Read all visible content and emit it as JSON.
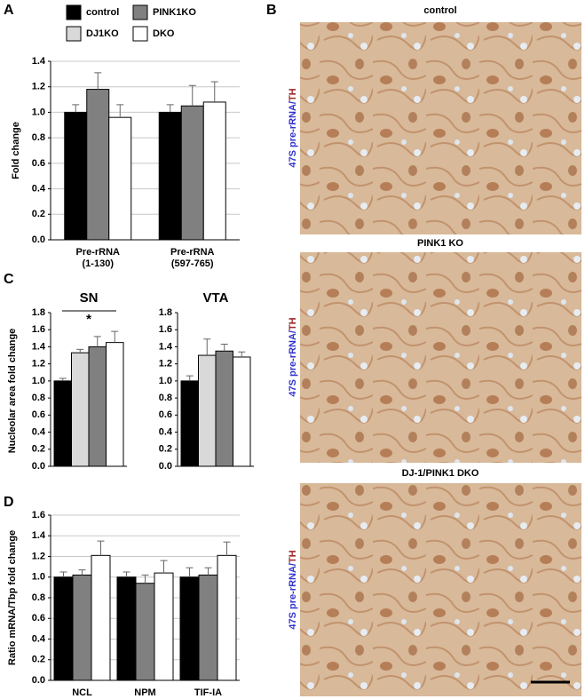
{
  "chart_data": [
    {
      "type": "bar",
      "y_label": "Fold change",
      "categories": [
        [
          "Pre-rRNA",
          "(1-130)"
        ],
        [
          "Pre-rRNA",
          "(597-765)"
        ]
      ],
      "series": [
        {
          "name": "control",
          "color": "#000000",
          "values": [
            1.0,
            1.0
          ],
          "errors": [
            0.06,
            0.06
          ]
        },
        {
          "name": "PINK1KO",
          "color": "#808080",
          "values": [
            1.18,
            1.05
          ],
          "errors": [
            0.13,
            0.16
          ]
        },
        {
          "name": "DKO",
          "color": "#ffffff",
          "values": [
            0.96,
            1.08
          ],
          "errors": [
            0.1,
            0.16
          ]
        }
      ],
      "ylim": [
        0,
        1.4
      ],
      "yticks": [
        {
          "value": 0,
          "label": "0.0"
        },
        {
          "value": 0.2,
          "label": "0.2"
        },
        {
          "value": 0.4,
          "label": "0.4"
        },
        {
          "value": 0.6,
          "label": "0.6"
        },
        {
          "value": 0.8,
          "label": "0.8"
        },
        {
          "value": 1,
          "label": "1.0"
        },
        {
          "value": 1.2,
          "label": "1.2"
        },
        {
          "value": 1.4,
          "label": "1.4"
        }
      ],
      "grid": true
    },
    {
      "type": "bar",
      "title": "SN",
      "y_label": "Nucleolar area fold change",
      "annotation": "*",
      "categories": [
        null
      ],
      "series": [
        {
          "name": "control",
          "color": "#000000",
          "values": [
            1.0
          ],
          "errors": [
            0.03
          ]
        },
        {
          "name": "DJ1KO",
          "color": "#d9d9d9",
          "values": [
            1.33
          ],
          "errors": [
            0.04
          ]
        },
        {
          "name": "PINK1KO",
          "color": "#808080",
          "values": [
            1.4
          ],
          "errors": [
            0.12
          ]
        },
        {
          "name": "DKO",
          "color": "#ffffff",
          "values": [
            1.45
          ],
          "errors": [
            0.13
          ]
        }
      ],
      "ylim": [
        0,
        1.8
      ],
      "yticks": [
        {
          "value": 0,
          "label": "0.0"
        },
        {
          "value": 0.2,
          "label": "0.2"
        },
        {
          "value": 0.4,
          "label": "0.4"
        },
        {
          "value": 0.6,
          "label": "0.6"
        },
        {
          "value": 0.8,
          "label": "0.8"
        },
        {
          "value": 1,
          "label": "1.0"
        },
        {
          "value": 1.2,
          "label": "1.2"
        },
        {
          "value": 1.4,
          "label": "1.4"
        },
        {
          "value": 1.6,
          "label": "1.6"
        },
        {
          "value": 1.8,
          "label": "1.8"
        }
      ],
      "grid": false
    },
    {
      "type": "bar",
      "title": "VTA",
      "categories": [
        null
      ],
      "series": [
        {
          "name": "control",
          "color": "#000000",
          "values": [
            1.0
          ],
          "errors": [
            0.06
          ]
        },
        {
          "name": "DJ1KO",
          "color": "#d9d9d9",
          "values": [
            1.3
          ],
          "errors": [
            0.19
          ]
        },
        {
          "name": "PINK1KO",
          "color": "#808080",
          "values": [
            1.35
          ],
          "errors": [
            0.08
          ]
        },
        {
          "name": "DKO",
          "color": "#ffffff",
          "values": [
            1.28
          ],
          "errors": [
            0.06
          ]
        }
      ],
      "ylim": [
        0,
        1.8
      ],
      "yticks": [
        {
          "value": 0,
          "label": "0.0"
        },
        {
          "value": 0.2,
          "label": "0.2"
        },
        {
          "value": 0.4,
          "label": "0.4"
        },
        {
          "value": 0.6,
          "label": "0.6"
        },
        {
          "value": 0.8,
          "label": "0.8"
        },
        {
          "value": 1,
          "label": "1.0"
        },
        {
          "value": 1.2,
          "label": "1.2"
        },
        {
          "value": 1.4,
          "label": "1.4"
        },
        {
          "value": 1.6,
          "label": "1.6"
        },
        {
          "value": 1.8,
          "label": "1.8"
        }
      ],
      "grid": false
    },
    {
      "type": "bar",
      "y_label": "Ratio mRNA/Tbp fold change",
      "categories": [
        [
          "NCL"
        ],
        [
          "NPM"
        ],
        [
          "TIF-IA"
        ]
      ],
      "series": [
        {
          "name": "control",
          "color": "#000000",
          "values": [
            1.0,
            1.0,
            1.0
          ],
          "errors": [
            0.05,
            0.05,
            0.09
          ]
        },
        {
          "name": "PINK1KO",
          "color": "#808080",
          "values": [
            1.02,
            0.94,
            1.02
          ],
          "errors": [
            0.05,
            0.08,
            0.07
          ]
        },
        {
          "name": "DKO",
          "color": "#ffffff",
          "values": [
            1.21,
            1.04,
            1.21
          ],
          "errors": [
            0.14,
            0.12,
            0.13
          ]
        }
      ],
      "ylim": [
        0,
        1.6
      ],
      "yticks": [
        {
          "value": 0,
          "label": "0.0"
        },
        {
          "value": 0.2,
          "label": "0.2"
        },
        {
          "value": 0.4,
          "label": "0.4"
        },
        {
          "value": 0.6,
          "label": "0.6"
        },
        {
          "value": 0.8,
          "label": "0.8"
        },
        {
          "value": 1,
          "label": "1.0"
        },
        {
          "value": 1.2,
          "label": "1.2"
        },
        {
          "value": 1.4,
          "label": "1.4"
        },
        {
          "value": 1.6,
          "label": "1.6"
        }
      ],
      "grid": true
    }
  ],
  "panel_labels": [
    "A",
    "B",
    "C",
    "D"
  ],
  "panel_b": {
    "titles": [
      "control",
      "PINK1 KO",
      "DJ-1/PINK1 DKO"
    ],
    "stain_label": [
      "47S pre-rRNA/",
      "TH"
    ]
  }
}
